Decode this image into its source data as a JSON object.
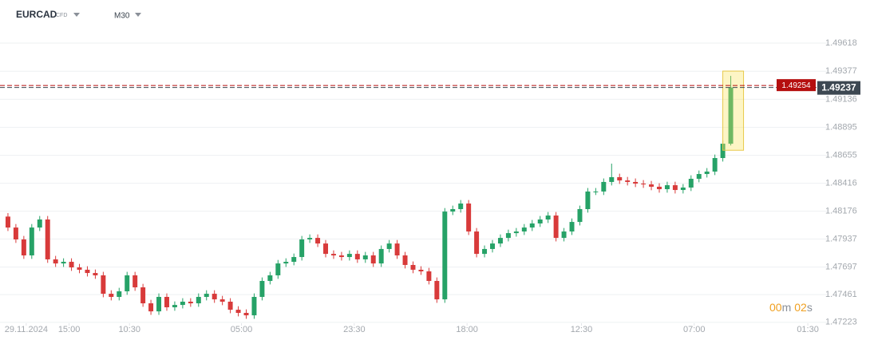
{
  "header": {
    "symbol": "EURCAD",
    "instrument_type": "CFD",
    "timeframe": "M30"
  },
  "countdown": {
    "minutes": "00",
    "minutes_unit": "m",
    "seconds": "02",
    "seconds_unit": "s"
  },
  "chart_data": {
    "type": "candlestick",
    "up_color": "#26a267",
    "down_color": "#d83a3a",
    "grid": true,
    "ask_price": 1.49254,
    "ask_color": "#b50f0f",
    "bid_price": 1.49237,
    "bid_color": "#3d4852",
    "ylim": [
      1.47215,
      1.49748
    ],
    "yticks": [
      1.49618,
      1.49377,
      1.49136,
      1.48895,
      1.48655,
      1.48416,
      1.48176,
      1.47937,
      1.47697,
      1.47461,
      1.47223
    ],
    "xlim": [
      -1,
      102.5
    ],
    "xticks": [
      {
        "value": 2.3,
        "label": "29.11.2024"
      },
      {
        "value": 7.7,
        "label": "15:00"
      },
      {
        "value": 15.3,
        "label": "10:30"
      },
      {
        "value": 29.4,
        "label": "05:00"
      },
      {
        "value": 43.6,
        "label": "23:30"
      },
      {
        "value": 57.8,
        "label": "18:00"
      },
      {
        "value": 72.2,
        "label": "12:30"
      },
      {
        "value": 86.4,
        "label": "07:00"
      },
      {
        "value": 100.7,
        "label": "01:30"
      }
    ],
    "open": [
      1.4813,
      1.48036,
      1.47934,
      1.47797,
      1.48036,
      1.48105,
      1.47763,
      1.47728,
      1.47742,
      1.47694,
      1.47674,
      1.47646,
      1.47626,
      1.47468,
      1.47441,
      1.47489,
      1.47626,
      1.47523,
      1.47386,
      1.47317,
      1.47441,
      1.47352,
      1.47372,
      1.474,
      1.47386,
      1.47441,
      1.47468,
      1.4742,
      1.474,
      1.47331,
      1.47304,
      1.47283,
      1.47441,
      1.47578,
      1.47626,
      1.47728,
      1.47742,
      1.47783,
      1.47934,
      1.47947,
      1.47899,
      1.4781,
      1.47797,
      1.47783,
      1.4781,
      1.47763,
      1.47797,
      1.47728,
      1.47852,
      1.47899,
      1.47797,
      1.47715,
      1.47674,
      1.4766,
      1.47578,
      1.4742,
      1.48173,
      1.48194,
      1.48242,
      1.48002,
      1.4781,
      1.47852,
      1.47899,
      1.47947,
      1.47988,
      1.48002,
      1.48036,
      1.48071,
      1.48105,
      1.48139,
      1.47947,
      1.48002,
      1.48084,
      1.48194,
      1.48345,
      1.48345,
      1.48427,
      1.48468,
      1.4844,
      1.48427,
      1.48413,
      1.48406,
      1.48386,
      1.48365,
      1.48399,
      1.48358,
      1.48379,
      1.48454,
      1.48495,
      1.48516,
      1.48632,
      1.48755
    ],
    "high": [
      1.4816,
      1.48066,
      1.47964,
      1.48066,
      1.48135,
      1.48135,
      1.47793,
      1.47772,
      1.47772,
      1.47724,
      1.47704,
      1.47676,
      1.47656,
      1.47498,
      1.47519,
      1.47656,
      1.47656,
      1.47553,
      1.47416,
      1.47471,
      1.47471,
      1.47402,
      1.4743,
      1.4743,
      1.47471,
      1.47498,
      1.47498,
      1.4745,
      1.4743,
      1.47361,
      1.47334,
      1.47471,
      1.47608,
      1.47656,
      1.47758,
      1.47772,
      1.47813,
      1.47964,
      1.47977,
      1.47977,
      1.47929,
      1.4784,
      1.47827,
      1.4784,
      1.4784,
      1.47827,
      1.47827,
      1.47882,
      1.47929,
      1.47929,
      1.47827,
      1.47745,
      1.47704,
      1.4769,
      1.47608,
      1.48203,
      1.48224,
      1.48272,
      1.48272,
      1.48032,
      1.47882,
      1.47929,
      1.47977,
      1.48018,
      1.48032,
      1.48066,
      1.48101,
      1.48135,
      1.48169,
      1.48169,
      1.48032,
      1.48114,
      1.48224,
      1.48375,
      1.48375,
      1.48457,
      1.48584,
      1.48498,
      1.4847,
      1.48457,
      1.48443,
      1.48436,
      1.48416,
      1.48429,
      1.48429,
      1.48409,
      1.48484,
      1.48525,
      1.48546,
      1.48662,
      1.48785,
      1.49337
    ],
    "low": [
      1.48006,
      1.47904,
      1.47767,
      1.47767,
      1.48006,
      1.47733,
      1.47698,
      1.47698,
      1.47664,
      1.47644,
      1.47616,
      1.47596,
      1.47438,
      1.47411,
      1.47411,
      1.47459,
      1.47493,
      1.47356,
      1.47287,
      1.47287,
      1.47322,
      1.47322,
      1.47342,
      1.47356,
      1.47356,
      1.47411,
      1.4739,
      1.4737,
      1.47301,
      1.47274,
      1.47253,
      1.47253,
      1.47411,
      1.47548,
      1.47596,
      1.47698,
      1.47712,
      1.47753,
      1.47904,
      1.47869,
      1.4778,
      1.47767,
      1.47753,
      1.47753,
      1.47733,
      1.47733,
      1.47698,
      1.47698,
      1.47822,
      1.47767,
      1.47685,
      1.47644,
      1.4763,
      1.47548,
      1.4739,
      1.4739,
      1.48143,
      1.48164,
      1.47972,
      1.4778,
      1.4778,
      1.47822,
      1.47869,
      1.47917,
      1.47958,
      1.47972,
      1.48006,
      1.48041,
      1.48075,
      1.47917,
      1.47917,
      1.47972,
      1.48054,
      1.48164,
      1.48315,
      1.48315,
      1.48397,
      1.4841,
      1.48397,
      1.48383,
      1.48376,
      1.48356,
      1.48335,
      1.48335,
      1.48328,
      1.48328,
      1.48349,
      1.48424,
      1.48465,
      1.48486,
      1.48602,
      1.4874
    ],
    "close": [
      1.48036,
      1.47934,
      1.47797,
      1.48036,
      1.48105,
      1.47763,
      1.47728,
      1.47742,
      1.47694,
      1.47674,
      1.47646,
      1.47626,
      1.47468,
      1.47441,
      1.47489,
      1.47626,
      1.47523,
      1.47386,
      1.47317,
      1.47441,
      1.47352,
      1.47372,
      1.474,
      1.47386,
      1.47441,
      1.47468,
      1.4742,
      1.474,
      1.47331,
      1.47304,
      1.47283,
      1.47441,
      1.47578,
      1.47626,
      1.47728,
      1.47742,
      1.47783,
      1.47934,
      1.47947,
      1.47899,
      1.4781,
      1.47797,
      1.47783,
      1.4781,
      1.47763,
      1.47797,
      1.47728,
      1.47852,
      1.47899,
      1.47797,
      1.47715,
      1.47674,
      1.4766,
      1.47578,
      1.4742,
      1.48173,
      1.48194,
      1.48242,
      1.48002,
      1.4781,
      1.47852,
      1.47899,
      1.47947,
      1.47988,
      1.48002,
      1.48036,
      1.48071,
      1.48105,
      1.48139,
      1.47947,
      1.48002,
      1.48084,
      1.48194,
      1.48345,
      1.48345,
      1.48427,
      1.48468,
      1.4844,
      1.48427,
      1.48413,
      1.48406,
      1.48386,
      1.48365,
      1.48399,
      1.48358,
      1.48379,
      1.48454,
      1.48495,
      1.48516,
      1.48632,
      1.48755,
      1.49237
    ]
  }
}
